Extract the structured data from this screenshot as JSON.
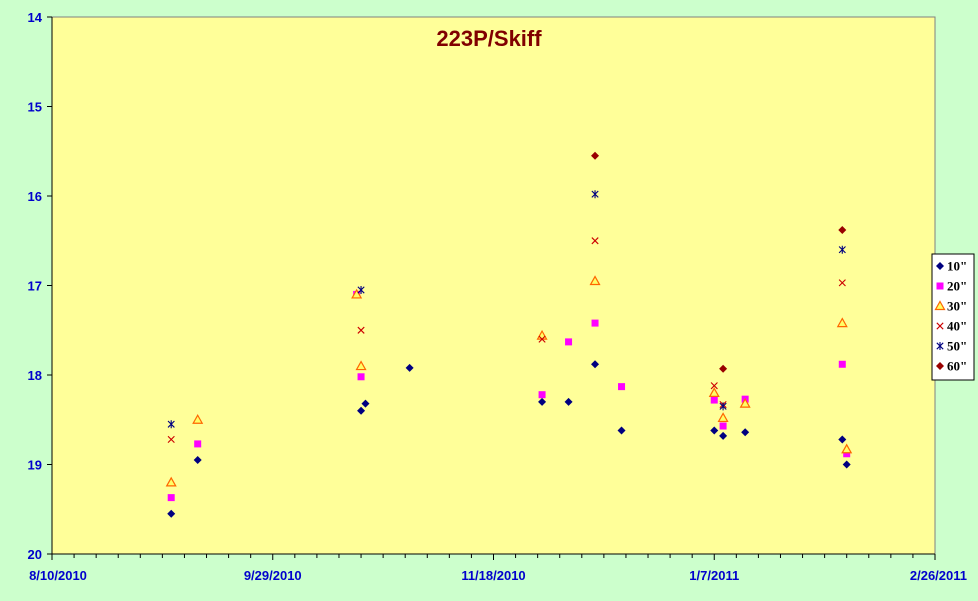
{
  "chart_data": {
    "type": "scatter",
    "title": "223P/Skiff",
    "xlabel": "",
    "ylabel": "",
    "x_ticks": [
      "8/10/2010",
      "9/29/2010",
      "11/18/2010",
      "1/7/2011",
      "2/26/2011"
    ],
    "x_range": [
      "2010-08-10",
      "2011-02-26"
    ],
    "y_ticks": [
      "14",
      "15",
      "16",
      "17",
      "18",
      "19",
      "20"
    ],
    "ylim": [
      14,
      20
    ],
    "y_reversed": true,
    "grid": "none",
    "legend_position": "right",
    "plot_background": "#ffff99",
    "page_background": "#ccffcc",
    "series": [
      {
        "name": "10\"",
        "marker": "diamond",
        "color": "#000080",
        "points": [
          [
            "2010-09-06",
            19.55
          ],
          [
            "2010-09-12",
            18.95
          ],
          [
            "2010-10-19",
            18.4
          ],
          [
            "2010-10-20",
            18.32
          ],
          [
            "2010-10-30",
            17.92
          ],
          [
            "2010-11-29",
            18.3
          ],
          [
            "2010-12-05",
            18.3
          ],
          [
            "2010-12-11",
            17.88
          ],
          [
            "2010-12-17",
            18.62
          ],
          [
            "2011-01-07",
            18.62
          ],
          [
            "2011-01-09",
            18.68
          ],
          [
            "2011-01-14",
            18.64
          ],
          [
            "2011-02-05",
            18.72
          ],
          [
            "2011-02-06",
            19.0
          ]
        ]
      },
      {
        "name": "20\"",
        "marker": "square",
        "color": "#ff00ff",
        "points": [
          [
            "2010-09-06",
            19.37
          ],
          [
            "2010-09-12",
            18.77
          ],
          [
            "2010-10-18",
            17.1
          ],
          [
            "2010-10-19",
            18.02
          ],
          [
            "2010-11-29",
            18.22
          ],
          [
            "2010-12-05",
            17.63
          ],
          [
            "2010-12-11",
            17.42
          ],
          [
            "2010-12-17",
            18.13
          ],
          [
            "2011-01-07",
            18.28
          ],
          [
            "2011-01-09",
            18.57
          ],
          [
            "2011-01-14",
            18.27
          ],
          [
            "2011-02-05",
            17.88
          ],
          [
            "2011-02-06",
            18.88
          ]
        ]
      },
      {
        "name": "30\"",
        "marker": "triangle",
        "color": "#ff6600",
        "points": [
          [
            "2010-09-06",
            19.2
          ],
          [
            "2010-09-12",
            18.5
          ],
          [
            "2010-10-18",
            17.1
          ],
          [
            "2010-10-19",
            17.9
          ],
          [
            "2010-11-29",
            17.56
          ],
          [
            "2010-12-11",
            16.95
          ],
          [
            "2011-01-07",
            18.2
          ],
          [
            "2011-01-09",
            18.48
          ],
          [
            "2011-01-14",
            18.32
          ],
          [
            "2011-02-05",
            17.42
          ],
          [
            "2011-02-06",
            18.83
          ]
        ]
      },
      {
        "name": "40\"",
        "marker": "x",
        "color": "#cc0000",
        "points": [
          [
            "2010-09-06",
            18.72
          ],
          [
            "2010-10-19",
            17.5
          ],
          [
            "2010-11-29",
            17.6
          ],
          [
            "2010-12-11",
            16.5
          ],
          [
            "2011-01-07",
            18.12
          ],
          [
            "2011-01-09",
            18.33
          ],
          [
            "2011-02-05",
            16.97
          ]
        ]
      },
      {
        "name": "50\"",
        "marker": "star",
        "color": "#000080",
        "points": [
          [
            "2010-09-06",
            18.55
          ],
          [
            "2010-10-19",
            17.05
          ],
          [
            "2010-12-11",
            15.98
          ],
          [
            "2011-01-09",
            18.35
          ],
          [
            "2011-02-05",
            16.6
          ]
        ]
      },
      {
        "name": "60\"",
        "marker": "diamond",
        "color": "#990000",
        "points": [
          [
            "2010-12-11",
            15.55
          ],
          [
            "2011-01-09",
            17.93
          ],
          [
            "2011-02-05",
            16.38
          ]
        ]
      }
    ]
  }
}
